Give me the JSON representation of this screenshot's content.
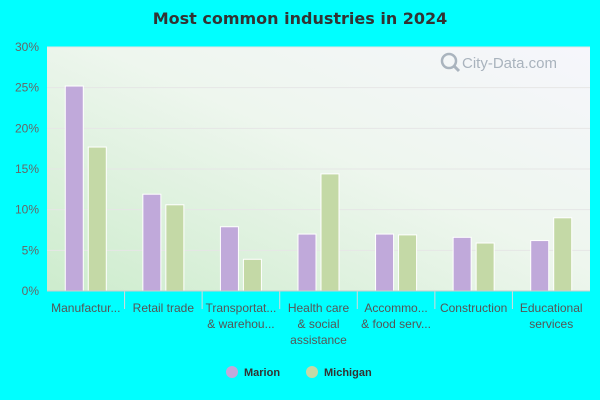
{
  "chart_data": {
    "type": "bar",
    "title": "Most common industries in 2024",
    "categories": [
      [
        "Manufactur..."
      ],
      [
        "Retail trade"
      ],
      [
        "Transportat...",
        "& warehou..."
      ],
      [
        "Health care",
        "& social",
        "assistance"
      ],
      [
        "Accommo...",
        "& food serv..."
      ],
      [
        "Construction"
      ],
      [
        "Educational",
        "services"
      ]
    ],
    "series": [
      {
        "name": "Marion",
        "color": "#c0a9da",
        "values": [
          25.2,
          11.9,
          7.9,
          7.0,
          7.0,
          6.6,
          6.2
        ]
      },
      {
        "name": "Michigan",
        "color": "#c4d9a6",
        "values": [
          17.7,
          10.6,
          3.9,
          14.4,
          6.9,
          5.9,
          9.0
        ]
      }
    ],
    "y_ticks": [
      "0%",
      "5%",
      "10%",
      "15%",
      "20%",
      "25%",
      "30%"
    ],
    "ylim": [
      0,
      30
    ],
    "grid": true,
    "legend_position": "bottom",
    "watermark": "City-Data.com"
  }
}
